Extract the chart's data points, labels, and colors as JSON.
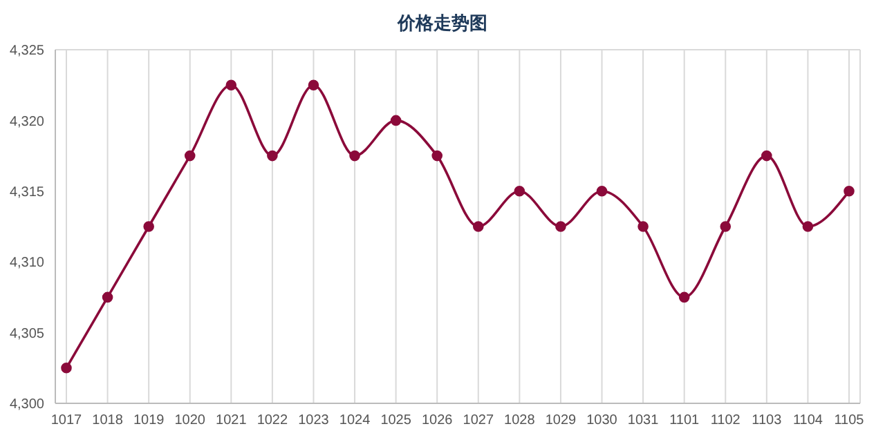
{
  "chart_data": {
    "type": "line",
    "title": "价格走势图",
    "categories": [
      "1017",
      "1018",
      "1019",
      "1020",
      "1021",
      "1022",
      "1023",
      "1024",
      "1025",
      "1026",
      "1027",
      "1028",
      "1029",
      "1030",
      "1031",
      "1101",
      "1102",
      "1103",
      "1104",
      "1105"
    ],
    "series": [
      {
        "color": "#8b0a3a",
        "values": [
          4302.5,
          4307.5,
          4312.5,
          4317.5,
          4322.5,
          4317.5,
          4322.5,
          4317.5,
          4320,
          4317.5,
          4312.5,
          4315,
          4312.5,
          4315,
          4312.5,
          4307.5,
          4312.5,
          4317.5,
          4312.5,
          4315
        ]
      }
    ],
    "ylim": [
      4300,
      4325
    ],
    "yticks": [
      {
        "value": 4300,
        "label": "4,300"
      },
      {
        "value": 4305,
        "label": "4,305"
      },
      {
        "value": 4310,
        "label": "4,310"
      },
      {
        "value": 4315,
        "label": "4,315"
      },
      {
        "value": 4320,
        "label": "4,320"
      },
      {
        "value": 4325,
        "label": "4,325"
      }
    ],
    "grid": true,
    "marker": "circle",
    "line_style": "solid",
    "legend": false
  }
}
